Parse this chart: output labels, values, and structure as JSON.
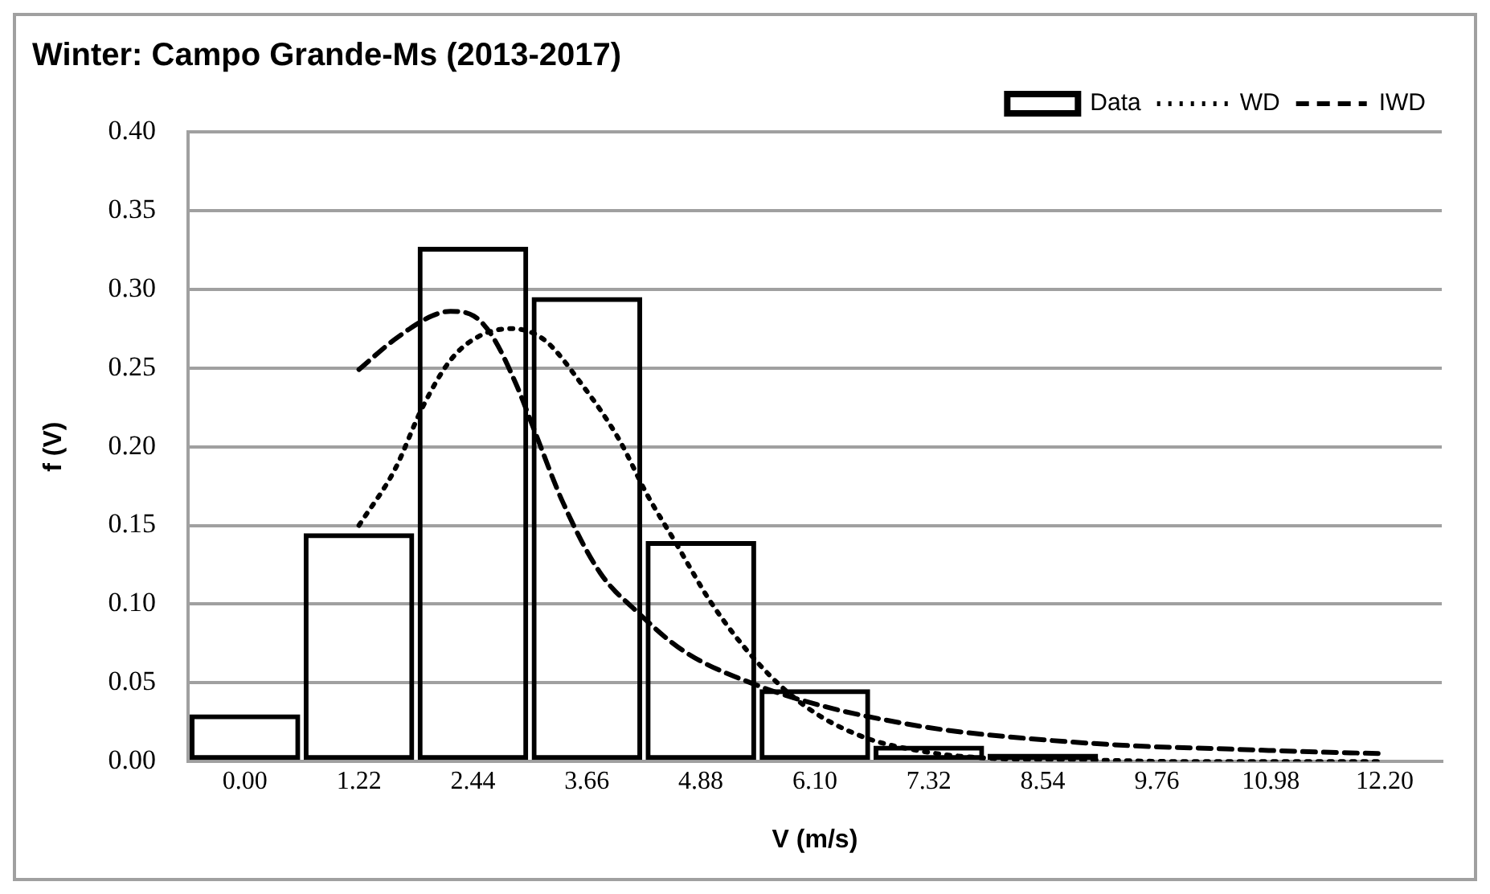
{
  "chart_data": {
    "type": "bar",
    "title": "Winter: Campo Grande-Ms (2013-2017)",
    "xlabel": "V (m/s)",
    "ylabel": "f (V)",
    "x": [
      0,
      1.22,
      2.44,
      3.66,
      4.88,
      6.1,
      7.32,
      8.54,
      9.76,
      10.98,
      12.2
    ],
    "xlim": [
      -0.61,
      12.81
    ],
    "xticks": [
      {
        "value": 0,
        "label": "0.00"
      },
      {
        "value": 1.22,
        "label": "1.22"
      },
      {
        "value": 2.44,
        "label": "2.44"
      },
      {
        "value": 3.66,
        "label": "3.66"
      },
      {
        "value": 4.88,
        "label": "4.88"
      },
      {
        "value": 6.1,
        "label": "6.10"
      },
      {
        "value": 7.32,
        "label": "7.32"
      },
      {
        "value": 8.54,
        "label": "8.54"
      },
      {
        "value": 9.76,
        "label": "9.76"
      },
      {
        "value": 10.98,
        "label": "10.98"
      },
      {
        "value": 12.2,
        "label": "12.20"
      }
    ],
    "ylim": [
      0,
      0.4
    ],
    "yticks": [
      {
        "value": 0,
        "label": "0.00"
      },
      {
        "value": 0.05,
        "label": "0.05"
      },
      {
        "value": 0.1,
        "label": "0.10"
      },
      {
        "value": 0.15,
        "label": "0.15"
      },
      {
        "value": 0.2,
        "label": "0.20"
      },
      {
        "value": 0.25,
        "label": "0.25"
      },
      {
        "value": 0.3,
        "label": "0.30"
      },
      {
        "value": 0.35,
        "label": "0.35"
      },
      {
        "value": 0.4,
        "label": "0.40"
      }
    ],
    "grid": "y",
    "legend": "top right",
    "series": [
      {
        "name": "Data",
        "color": "#000000",
        "values": [
          0.03,
          0.145,
          0.327,
          0.295,
          0.14,
          0.046,
          0.01,
          0.005,
          0.001,
          0,
          0
        ]
      },
      {
        "name": "WD",
        "type": "line",
        "line_style": "dotted",
        "marker": "none",
        "color": "#000000",
        "x": [
          1.22,
          1.6,
          1.9,
          2.2,
          2.5,
          2.85,
          3.2,
          3.6,
          4.0,
          4.3,
          4.6,
          5.0,
          5.5,
          6.0,
          6.6,
          7.3,
          8.0,
          9.0,
          10.0,
          12.2
        ],
        "values": [
          0.15,
          0.185,
          0.225,
          0.255,
          0.27,
          0.275,
          0.268,
          0.24,
          0.205,
          0.17,
          0.14,
          0.1,
          0.062,
          0.035,
          0.016,
          0.006,
          0.002,
          0.001,
          0,
          0
        ]
      },
      {
        "name": "IWD",
        "type": "line",
        "line_style": "dashed",
        "marker": "none",
        "color": "#000000",
        "x": [
          1.22,
          1.6,
          2.0,
          2.2,
          2.45,
          2.65,
          2.9,
          3.1,
          3.4,
          3.8,
          4.2,
          4.7,
          5.5,
          6.2,
          6.8,
          7.5,
          8.5,
          9.5,
          10.5,
          11.5,
          12.2
        ],
        "values": [
          0.249,
          0.268,
          0.283,
          0.286,
          0.283,
          0.27,
          0.24,
          0.21,
          0.165,
          0.12,
          0.095,
          0.07,
          0.048,
          0.035,
          0.027,
          0.02,
          0.014,
          0.01,
          0.008,
          0.006,
          0.005
        ]
      }
    ]
  }
}
